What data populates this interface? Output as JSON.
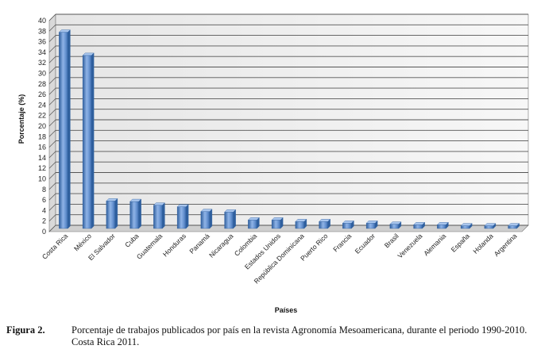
{
  "chart_data": {
    "type": "bar",
    "categories": [
      "Costa Rica",
      "México",
      "El Salvador",
      "Cuba",
      "Guatemala",
      "Honduras",
      "Panamá",
      "Nicaragua",
      "Colombia",
      "Estados Unidos",
      "República Dominicana",
      "Puerto Rico",
      "Francia",
      "Ecuador",
      "Brasil",
      "Venezuela",
      "Alemania",
      "España",
      "Holanda",
      "Argentina"
    ],
    "values": [
      37.2,
      32.8,
      5.2,
      5.1,
      4.4,
      4.1,
      3.2,
      3.1,
      1.6,
      1.6,
      1.3,
      1.3,
      1.0,
      1.0,
      0.8,
      0.7,
      0.7,
      0.5,
      0.5,
      0.5
    ],
    "xlabel": "Países",
    "ylabel": "Porcentaje (%)",
    "ylim": [
      0,
      40
    ],
    "yticks": [
      0,
      2,
      4,
      6,
      8,
      10,
      12,
      14,
      16,
      18,
      20,
      22,
      24,
      26,
      28,
      30,
      32,
      34,
      36,
      38,
      40
    ],
    "grid": true,
    "colors": {
      "bar": "#6f9ad6",
      "bar_dark": "#2f5f9e",
      "bar_light": "#a9c6ee",
      "grid": "#555555"
    }
  },
  "caption": {
    "label": "Figura 2.",
    "text": "Porcentaje de trabajos publicados por país en la revista Agronomía Mesoamericana, durante el periodo 1990-2010. Costa Rica 2011."
  }
}
